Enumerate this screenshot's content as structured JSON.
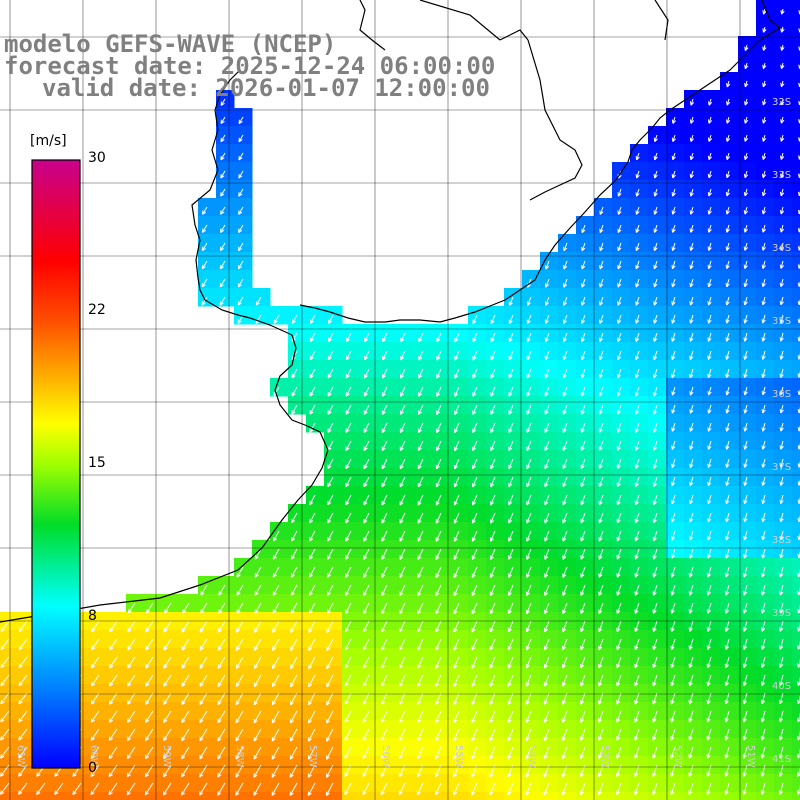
{
  "title": {
    "line1": "modelo GEFS-WAVE (NCEP)",
    "line2": "forecast date: 2025-12-24 06:00:00",
    "line3": "valid date: 2026-01-07 12:00:00"
  },
  "colorbar": {
    "unit": "[m/s]",
    "ticks": [
      "30",
      "22",
      "15",
      "8",
      "0"
    ],
    "range": [
      0,
      30
    ]
  },
  "map": {
    "lon_labels": [
      "61W",
      "60W",
      "59W",
      "58W",
      "57W",
      "56W",
      "55W",
      "54W",
      "53W",
      "52W",
      "51W"
    ],
    "lat_labels": [
      "32S",
      "33S",
      "34S",
      "35S",
      "36S",
      "37S",
      "38S",
      "39S",
      "40S",
      "41S"
    ],
    "field": "wind speed",
    "colors": {
      "land": "#ffffff",
      "coast": "#000000",
      "grid": "#000000",
      "arrows": "#ffffff",
      "labels": "#cfcfcf"
    }
  }
}
